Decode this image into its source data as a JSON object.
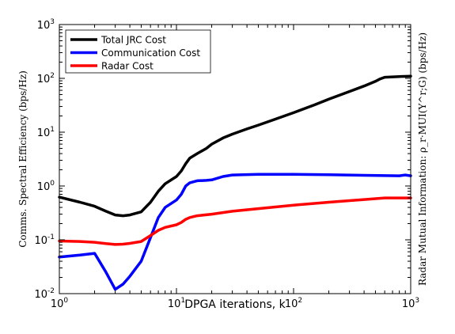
{
  "chart_data": {
    "type": "line",
    "title": "",
    "xlabel": "DPGA iterations, k",
    "ylabel_left": "Comms. Spectral Efficiency (bps/Hz)",
    "ylabel_right": "Radar Mutual Information: ρ_r·MUI(Y^r;G) (bps/Hz)",
    "x_scale": "log",
    "y_scale": "log",
    "xlim": [
      1,
      1000
    ],
    "ylim": [
      0.01,
      1000
    ],
    "x_ticks": [
      {
        "value": 1,
        "base": "10",
        "exp": "0"
      },
      {
        "value": 10,
        "base": "10",
        "exp": "1"
      },
      {
        "value": 100,
        "base": "10",
        "exp": "2"
      },
      {
        "value": 1000,
        "base": "10",
        "exp": "3"
      }
    ],
    "y_ticks": [
      {
        "value": 0.01,
        "base": "10",
        "exp": "-2"
      },
      {
        "value": 0.1,
        "base": "10",
        "exp": "-1"
      },
      {
        "value": 1,
        "base": "10",
        "exp": "0"
      },
      {
        "value": 10,
        "base": "10",
        "exp": "1"
      },
      {
        "value": 100,
        "base": "10",
        "exp": "2"
      },
      {
        "value": 1000,
        "base": "10",
        "exp": "3"
      }
    ],
    "grid": false,
    "legend_position": "top-left",
    "series": [
      {
        "name": "Total JRC Cost",
        "color": "#000000",
        "points": [
          [
            1,
            0.62
          ],
          [
            1.5,
            0.5
          ],
          [
            2,
            0.42
          ],
          [
            2.5,
            0.34
          ],
          [
            3,
            0.29
          ],
          [
            3.5,
            0.28
          ],
          [
            4,
            0.29
          ],
          [
            5,
            0.33
          ],
          [
            6,
            0.5
          ],
          [
            7,
            0.8
          ],
          [
            8,
            1.1
          ],
          [
            10,
            1.5
          ],
          [
            11,
            1.9
          ],
          [
            12,
            2.6
          ],
          [
            13,
            3.3
          ],
          [
            15,
            4.0
          ],
          [
            18,
            5.0
          ],
          [
            20,
            6.0
          ],
          [
            25,
            7.8
          ],
          [
            30,
            9.2
          ],
          [
            40,
            11.5
          ],
          [
            50,
            13.5
          ],
          [
            70,
            17.5
          ],
          [
            100,
            23
          ],
          [
            150,
            32
          ],
          [
            200,
            41
          ],
          [
            300,
            57
          ],
          [
            400,
            72
          ],
          [
            500,
            88
          ],
          [
            550,
            98
          ],
          [
            600,
            105
          ],
          [
            800,
            108
          ],
          [
            1000,
            110
          ]
        ]
      },
      {
        "name": "Communication Cost",
        "color": "#0000ff",
        "points": [
          [
            1,
            0.048
          ],
          [
            1.5,
            0.052
          ],
          [
            2,
            0.056
          ],
          [
            2.5,
            0.025
          ],
          [
            3,
            0.012
          ],
          [
            3.5,
            0.015
          ],
          [
            4,
            0.021
          ],
          [
            5,
            0.04
          ],
          [
            6,
            0.11
          ],
          [
            7,
            0.26
          ],
          [
            8,
            0.4
          ],
          [
            10,
            0.55
          ],
          [
            11,
            0.7
          ],
          [
            12,
            1.0
          ],
          [
            13,
            1.15
          ],
          [
            15,
            1.25
          ],
          [
            18,
            1.27
          ],
          [
            20,
            1.3
          ],
          [
            25,
            1.5
          ],
          [
            30,
            1.6
          ],
          [
            50,
            1.65
          ],
          [
            100,
            1.65
          ],
          [
            200,
            1.62
          ],
          [
            400,
            1.58
          ],
          [
            800,
            1.55
          ],
          [
            900,
            1.6
          ],
          [
            1000,
            1.55
          ]
        ]
      },
      {
        "name": "Radar Cost",
        "color": "#ff0000",
        "points": [
          [
            1,
            0.095
          ],
          [
            1.5,
            0.093
          ],
          [
            2,
            0.09
          ],
          [
            2.5,
            0.085
          ],
          [
            3,
            0.082
          ],
          [
            3.5,
            0.083
          ],
          [
            4,
            0.086
          ],
          [
            5,
            0.093
          ],
          [
            6,
            0.12
          ],
          [
            7,
            0.15
          ],
          [
            8,
            0.17
          ],
          [
            10,
            0.19
          ],
          [
            11,
            0.21
          ],
          [
            12,
            0.24
          ],
          [
            13,
            0.26
          ],
          [
            15,
            0.28
          ],
          [
            20,
            0.3
          ],
          [
            30,
            0.34
          ],
          [
            50,
            0.38
          ],
          [
            100,
            0.44
          ],
          [
            200,
            0.5
          ],
          [
            400,
            0.56
          ],
          [
            600,
            0.6
          ],
          [
            1000,
            0.6
          ]
        ]
      }
    ]
  }
}
